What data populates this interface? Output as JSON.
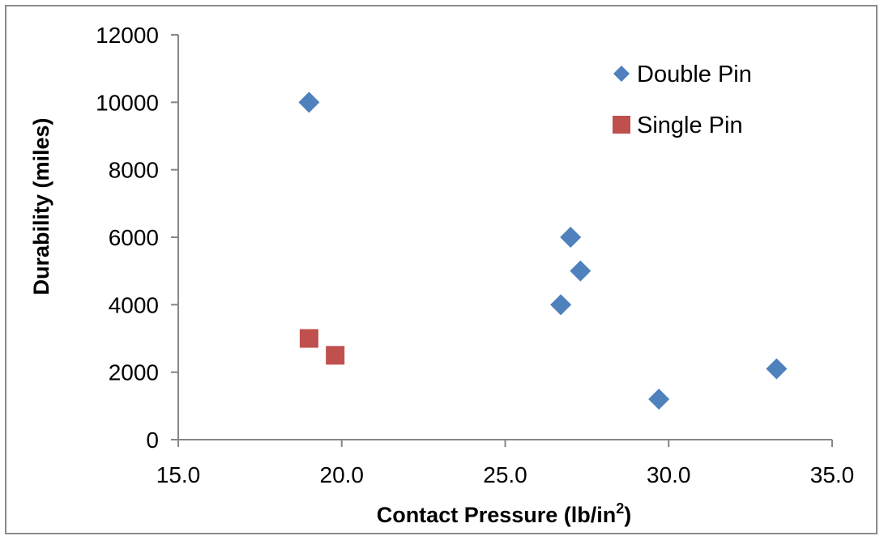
{
  "chart_data": {
    "type": "scatter",
    "xlabel": "Contact Pressure (lb/in",
    "xlabel_sup": "2",
    "xlabel_suffix": ")",
    "ylabel": "Durability (miles)",
    "xlim": [
      15,
      35
    ],
    "ylim": [
      0,
      12000
    ],
    "x_ticks": [
      "15.0",
      "20.0",
      "25.0",
      "30.0",
      "35.0"
    ],
    "y_ticks": [
      "0",
      "2000",
      "4000",
      "6000",
      "8000",
      "10000",
      "12000"
    ],
    "grid": false,
    "legend_position": "top-right",
    "series": [
      {
        "name": "Double Pin",
        "marker": "diamond",
        "color": "#4f81bd",
        "points": [
          {
            "x": 19.0,
            "y": 10000
          },
          {
            "x": 27.0,
            "y": 6000
          },
          {
            "x": 27.3,
            "y": 5000
          },
          {
            "x": 26.7,
            "y": 4000
          },
          {
            "x": 33.3,
            "y": 2100
          },
          {
            "x": 29.7,
            "y": 1200
          }
        ]
      },
      {
        "name": "Single Pin",
        "marker": "square",
        "color": "#c0504d",
        "points": [
          {
            "x": 19.0,
            "y": 3000
          },
          {
            "x": 19.8,
            "y": 2500
          }
        ]
      }
    ]
  }
}
